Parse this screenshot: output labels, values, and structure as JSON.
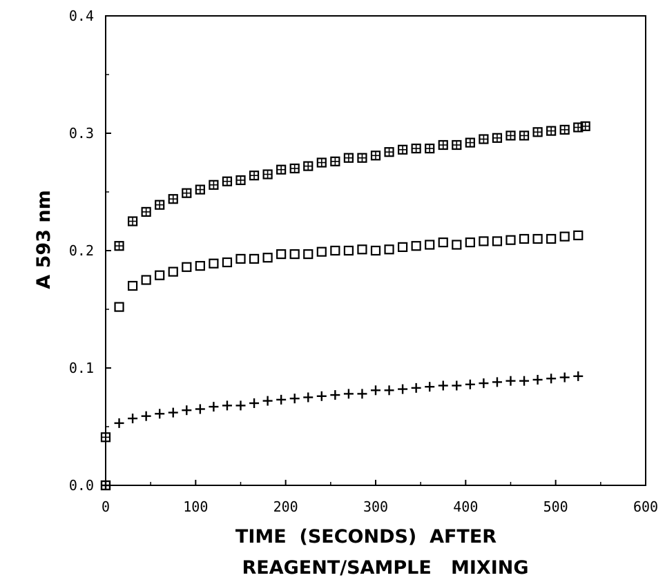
{
  "chart_data": {
    "type": "scatter",
    "title": "",
    "xlabel_lines": [
      "TIME  (SECONDS)  AFTER",
      "REAGENT/SAMPLE   MIXING"
    ],
    "ylabel": "A 593 nm",
    "xlim": [
      0,
      600
    ],
    "ylim": [
      0,
      0.4
    ],
    "xticks": [
      0,
      100,
      200,
      300,
      400,
      500,
      600
    ],
    "xtick_labels": [
      "0",
      "100",
      "200",
      "300",
      "400",
      "500",
      "600"
    ],
    "yticks": [
      0,
      0.1,
      0.2,
      0.3,
      0.4
    ],
    "ytick_labels": [
      "0.0",
      "0.1",
      "0.2",
      "0.3",
      "0.4"
    ],
    "grid": false,
    "legend": "none",
    "series": [
      {
        "marker": "boxed-plus",
        "points": [
          [
            0,
            0.0
          ],
          [
            0,
            0.041
          ],
          [
            15,
            0.204
          ],
          [
            30,
            0.225
          ],
          [
            45,
            0.233
          ],
          [
            60,
            0.239
          ],
          [
            75,
            0.244
          ],
          [
            90,
            0.249
          ],
          [
            105,
            0.252
          ],
          [
            120,
            0.256
          ],
          [
            135,
            0.259
          ],
          [
            150,
            0.26
          ],
          [
            165,
            0.264
          ],
          [
            180,
            0.265
          ],
          [
            195,
            0.269
          ],
          [
            210,
            0.27
          ],
          [
            225,
            0.272
          ],
          [
            240,
            0.275
          ],
          [
            255,
            0.276
          ],
          [
            270,
            0.279
          ],
          [
            285,
            0.279
          ],
          [
            300,
            0.281
          ],
          [
            315,
            0.284
          ],
          [
            330,
            0.286
          ],
          [
            345,
            0.287
          ],
          [
            360,
            0.287
          ],
          [
            375,
            0.29
          ],
          [
            390,
            0.29
          ],
          [
            405,
            0.292
          ],
          [
            420,
            0.295
          ],
          [
            435,
            0.296
          ],
          [
            450,
            0.298
          ],
          [
            465,
            0.298
          ],
          [
            480,
            0.301
          ],
          [
            495,
            0.302
          ],
          [
            510,
            0.303
          ],
          [
            525,
            0.305
          ],
          [
            533,
            0.306
          ]
        ]
      },
      {
        "marker": "square",
        "points": [
          [
            0,
            0.0
          ],
          [
            15,
            0.152
          ],
          [
            30,
            0.17
          ],
          [
            45,
            0.175
          ],
          [
            60,
            0.179
          ],
          [
            75,
            0.182
          ],
          [
            90,
            0.186
          ],
          [
            105,
            0.187
          ],
          [
            120,
            0.189
          ],
          [
            135,
            0.19
          ],
          [
            150,
            0.193
          ],
          [
            165,
            0.193
          ],
          [
            180,
            0.194
          ],
          [
            195,
            0.197
          ],
          [
            210,
            0.197
          ],
          [
            225,
            0.197
          ],
          [
            240,
            0.199
          ],
          [
            255,
            0.2
          ],
          [
            270,
            0.2
          ],
          [
            285,
            0.201
          ],
          [
            300,
            0.2
          ],
          [
            315,
            0.201
          ],
          [
            330,
            0.203
          ],
          [
            345,
            0.204
          ],
          [
            360,
            0.205
          ],
          [
            375,
            0.207
          ],
          [
            390,
            0.205
          ],
          [
            405,
            0.207
          ],
          [
            420,
            0.208
          ],
          [
            435,
            0.208
          ],
          [
            450,
            0.209
          ],
          [
            465,
            0.21
          ],
          [
            480,
            0.21
          ],
          [
            495,
            0.21
          ],
          [
            510,
            0.212
          ],
          [
            525,
            0.213
          ]
        ]
      },
      {
        "marker": "plus",
        "points": [
          [
            0,
            0.0
          ],
          [
            15,
            0.053
          ],
          [
            30,
            0.057
          ],
          [
            45,
            0.059
          ],
          [
            60,
            0.061
          ],
          [
            75,
            0.062
          ],
          [
            90,
            0.064
          ],
          [
            105,
            0.065
          ],
          [
            120,
            0.067
          ],
          [
            135,
            0.068
          ],
          [
            150,
            0.068
          ],
          [
            165,
            0.07
          ],
          [
            180,
            0.072
          ],
          [
            195,
            0.073
          ],
          [
            210,
            0.074
          ],
          [
            225,
            0.075
          ],
          [
            240,
            0.076
          ],
          [
            255,
            0.077
          ],
          [
            270,
            0.078
          ],
          [
            285,
            0.078
          ],
          [
            300,
            0.081
          ],
          [
            315,
            0.081
          ],
          [
            330,
            0.082
          ],
          [
            345,
            0.083
          ],
          [
            360,
            0.084
          ],
          [
            375,
            0.085
          ],
          [
            390,
            0.085
          ],
          [
            405,
            0.086
          ],
          [
            420,
            0.087
          ],
          [
            435,
            0.088
          ],
          [
            450,
            0.089
          ],
          [
            465,
            0.089
          ],
          [
            480,
            0.09
          ],
          [
            495,
            0.091
          ],
          [
            510,
            0.092
          ],
          [
            525,
            0.093
          ]
        ]
      }
    ]
  }
}
